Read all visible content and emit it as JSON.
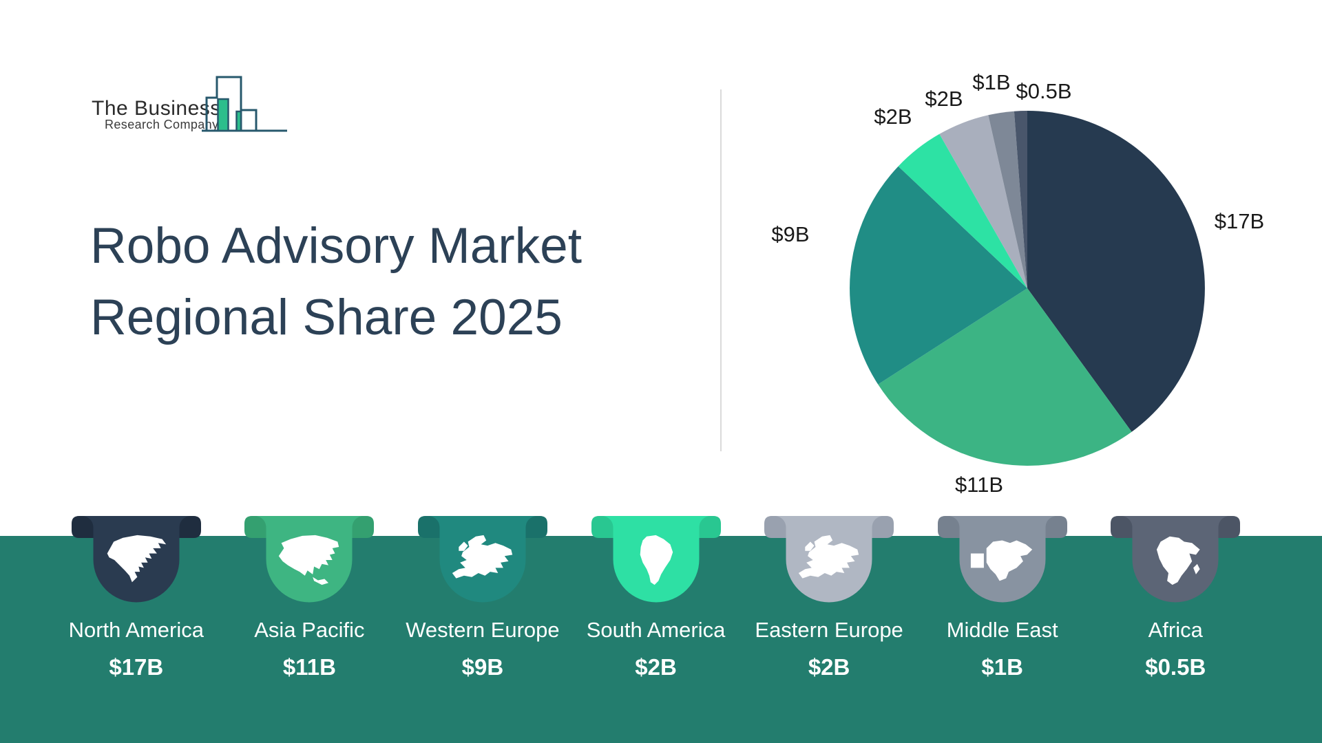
{
  "logo": {
    "line1": "The Business",
    "line2": "Research Company",
    "icon": "bar-chart-logo-icon"
  },
  "title": {
    "line1": "Robo Advisory Market",
    "line2": "Regional Share 2025"
  },
  "chart_data": {
    "type": "pie",
    "title": "Robo Advisory Market Regional Share 2025",
    "categories": [
      "North America",
      "Asia Pacific",
      "Western Europe",
      "South America",
      "Eastern Europe",
      "Middle East",
      "Africa"
    ],
    "values": [
      17,
      11,
      9,
      2,
      2,
      1,
      0.5
    ],
    "labels": [
      "$17B",
      "$11B",
      "$9B",
      "$2B",
      "$2B",
      "$1B",
      "$0.5B"
    ],
    "colors": [
      "#263A50",
      "#3CB484",
      "#208D85",
      "#2DE2A4",
      "#A9AFBD",
      "#7E8897",
      "#49566B"
    ],
    "total": 42.5,
    "start_angle_deg_from_top": 0,
    "direction": "clockwise",
    "legend_position": "none"
  },
  "regions": [
    {
      "name": "North America",
      "value": "$17B",
      "color": "#2A3B50",
      "ear_color": "#1F2D3F",
      "icon": "north-america-map-icon"
    },
    {
      "name": "Asia Pacific",
      "value": "$11B",
      "color": "#3EB582",
      "ear_color": "#34A070",
      "icon": "asia-pacific-map-icon"
    },
    {
      "name": "Western Europe",
      "value": "$9B",
      "color": "#20897F",
      "ear_color": "#1A716A",
      "icon": "western-europe-map-icon"
    },
    {
      "name": "South America",
      "value": "$2B",
      "color": "#2EE0A4",
      "ear_color": "#29C791",
      "icon": "south-america-map-icon"
    },
    {
      "name": "Eastern Europe",
      "value": "$2B",
      "color": "#B0B7C3",
      "ear_color": "#99A1AF",
      "icon": "eastern-europe-map-icon"
    },
    {
      "name": "Middle East",
      "value": "$1B",
      "color": "#8893A1",
      "ear_color": "#76818F",
      "icon": "middle-east-map-icon"
    },
    {
      "name": "Africa",
      "value": "$0.5B",
      "color": "#5C6576",
      "ear_color": "#4C5565",
      "icon": "africa-map-icon"
    }
  ],
  "colors": {
    "band_background": "#237D6E",
    "title_text": "#2C4156",
    "pie_label_text": "#191919",
    "divider": "#DADADA",
    "logo_outline": "#27586C",
    "logo_green": "#2CBE8C",
    "region_text": "#FFFFFF"
  }
}
